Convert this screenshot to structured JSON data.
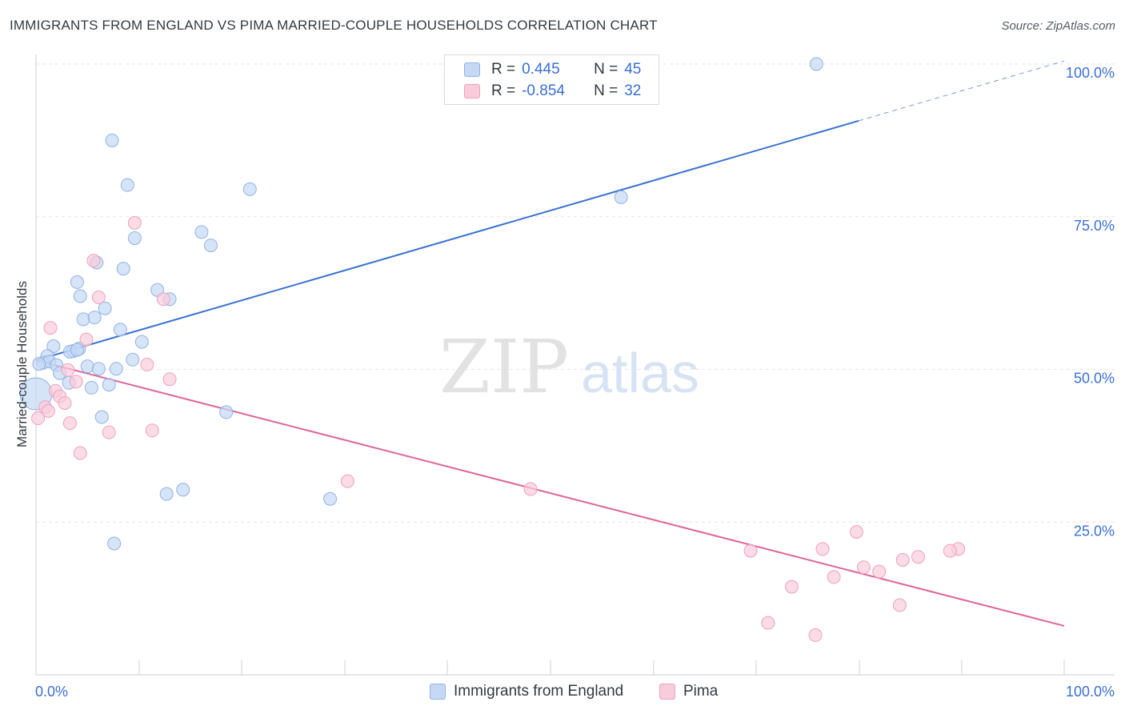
{
  "title": "IMMIGRANTS FROM ENGLAND VS PIMA MARRIED-COUPLE HOUSEHOLDS CORRELATION CHART",
  "source": "Source: ZipAtlas.com",
  "watermark": {
    "zip": "ZIP",
    "atlas": "atlas"
  },
  "legend": {
    "r_label": "R =",
    "n_label": "N =",
    "rows": [
      {
        "r": "0.445",
        "n": "45"
      },
      {
        "r": "-0.854",
        "n": "32"
      }
    ]
  },
  "chart_data": {
    "type": "scatter",
    "title": "IMMIGRANTS FROM ENGLAND VS PIMA MARRIED-COUPLE HOUSEHOLDS CORRELATION CHART",
    "xlabel": "",
    "ylabel": "Married-couple Households",
    "xlim": [
      0,
      100
    ],
    "ylim": [
      0,
      102
    ],
    "x_tick_labels": [
      "0.0%",
      "100.0%"
    ],
    "y_ticks": [
      {
        "value": 25,
        "label": "25.0%"
      },
      {
        "value": 50,
        "label": "50.0%"
      },
      {
        "value": 75,
        "label": "75.0%"
      },
      {
        "value": 100,
        "label": "100.0%"
      }
    ],
    "series": [
      {
        "name": "Immigrants from England",
        "color": "#3a72d4",
        "fill": "#c5d9f5",
        "stroke": "#8fb2e6",
        "trend": {
          "x0": 0,
          "y0": 51.5,
          "x1": 80,
          "y1": 90.7,
          "dash_to_x": 100
        },
        "points": [
          [
            75.9,
            100
          ],
          [
            7.4,
            87.5
          ],
          [
            8.9,
            80.2
          ],
          [
            20.8,
            79.5
          ],
          [
            56.9,
            78.2
          ],
          [
            16.1,
            72.5
          ],
          [
            9.6,
            71.5
          ],
          [
            17.0,
            70.3
          ],
          [
            5.9,
            67.5
          ],
          [
            8.5,
            66.5
          ],
          [
            4.0,
            64.3
          ],
          [
            11.8,
            63.0
          ],
          [
            4.3,
            62.0
          ],
          [
            13.0,
            61.5
          ],
          [
            6.7,
            60.0
          ],
          [
            4.6,
            58.2
          ],
          [
            5.7,
            58.5
          ],
          [
            8.2,
            56.5
          ],
          [
            10.3,
            54.5
          ],
          [
            1.7,
            53.8
          ],
          [
            3.6,
            53.0
          ],
          [
            4.2,
            53.4
          ],
          [
            3.3,
            52.9
          ],
          [
            1.1,
            52.2
          ],
          [
            4.0,
            53.2
          ],
          [
            0.7,
            51.1
          ],
          [
            1.3,
            51.3
          ],
          [
            0.3,
            50.9
          ],
          [
            2.0,
            50.7
          ],
          [
            5.0,
            50.5
          ],
          [
            6.1,
            50.1
          ],
          [
            7.8,
            50.1
          ],
          [
            2.3,
            49.4
          ],
          [
            9.4,
            51.6
          ],
          [
            0.0,
            46.0
          ],
          [
            3.2,
            47.8
          ],
          [
            5.4,
            47.0
          ],
          [
            7.1,
            47.5
          ],
          [
            18.5,
            43.0
          ],
          [
            6.4,
            42.2
          ],
          [
            14.3,
            30.3
          ],
          [
            12.7,
            29.6
          ],
          [
            28.6,
            28.8
          ],
          [
            7.6,
            21.5
          ]
        ],
        "large_points": [
          [
            0.0,
            46.0
          ]
        ]
      },
      {
        "name": "Pima",
        "color": "#e0649a",
        "fill": "#f9ccdc",
        "stroke": "#efa0bd",
        "trend": {
          "x0": 0,
          "y0": 51.5,
          "x1": 100,
          "y1": 8.0
        },
        "points": [
          [
            9.6,
            74.0
          ],
          [
            5.6,
            67.8
          ],
          [
            6.1,
            61.8
          ],
          [
            12.4,
            61.5
          ],
          [
            1.4,
            56.8
          ],
          [
            4.9,
            54.9
          ],
          [
            10.8,
            50.8
          ],
          [
            3.1,
            49.9
          ],
          [
            13.0,
            48.4
          ],
          [
            3.9,
            48.0
          ],
          [
            1.9,
            46.5
          ],
          [
            2.3,
            45.6
          ],
          [
            2.8,
            44.5
          ],
          [
            0.9,
            43.8
          ],
          [
            1.2,
            43.2
          ],
          [
            0.2,
            42.0
          ],
          [
            3.3,
            41.2
          ],
          [
            11.3,
            40.0
          ],
          [
            7.1,
            39.7
          ],
          [
            4.3,
            36.3
          ],
          [
            30.3,
            31.7
          ],
          [
            48.1,
            30.4
          ],
          [
            69.5,
            20.3
          ],
          [
            79.8,
            23.4
          ],
          [
            76.5,
            20.6
          ],
          [
            85.8,
            19.3
          ],
          [
            80.5,
            17.6
          ],
          [
            82.0,
            16.9
          ],
          [
            77.6,
            16.0
          ],
          [
            73.5,
            14.4
          ],
          [
            75.8,
            6.5
          ],
          [
            71.2,
            8.5
          ],
          [
            84.3,
            18.8
          ],
          [
            89.7,
            20.6
          ],
          [
            88.9,
            20.3
          ],
          [
            84.0,
            11.4
          ]
        ]
      }
    ]
  }
}
